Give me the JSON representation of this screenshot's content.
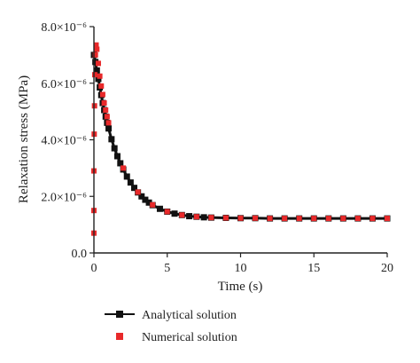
{
  "chart_data": {
    "type": "line",
    "xlabel": "Time (s)",
    "ylabel": "Relaxation stress (MPa)",
    "xlim": [
      0,
      20
    ],
    "ylim": [
      0,
      8e-06
    ],
    "x_ticks": [
      0,
      5,
      10,
      15,
      20
    ],
    "x_tick_labels": [
      "0",
      "5",
      "10",
      "15",
      "20"
    ],
    "y_ticks": [
      0,
      2e-06,
      4e-06,
      6e-06,
      8e-06
    ],
    "y_tick_labels": [
      "0.0",
      "2.0×10⁻⁶",
      "4.0×10⁻⁶",
      "6.0×10⁻⁶",
      "8.0×10⁻⁶"
    ],
    "grid": false,
    "legend_position": "bottom",
    "series": [
      {
        "name": "Analytical solution",
        "style": "line-square",
        "color": "#111111",
        "x": [
          0.0,
          0.1,
          0.2,
          0.3,
          0.4,
          0.5,
          0.6,
          0.7,
          0.8,
          0.9,
          1.0,
          1.2,
          1.4,
          1.6,
          1.8,
          2.0,
          2.25,
          2.5,
          2.75,
          3.0,
          3.25,
          3.5,
          3.75,
          4.0,
          4.5,
          5.0,
          5.5,
          6.0,
          6.5,
          7.0,
          7.5,
          8.0,
          9.0,
          10.0,
          11.0,
          12.0,
          13.0,
          14.0,
          15.0,
          16.0,
          17.0,
          18.0,
          19.0,
          20.0
        ],
        "y": [
          7e-06,
          6.75e-06,
          6.45e-06,
          6.15e-06,
          5.85e-06,
          5.58e-06,
          5.3e-06,
          5.05e-06,
          4.82e-06,
          4.6e-06,
          4.4e-06,
          4.02e-06,
          3.7e-06,
          3.42e-06,
          3.17e-06,
          2.95e-06,
          2.7e-06,
          2.49e-06,
          2.3e-06,
          2.14e-06,
          2e-06,
          1.88e-06,
          1.78e-06,
          1.69e-06,
          1.56e-06,
          1.46e-06,
          1.39e-06,
          1.34e-06,
          1.3e-06,
          1.28e-06,
          1.26e-06,
          1.25e-06,
          1.24e-06,
          1.23e-06,
          1.23e-06,
          1.22e-06,
          1.22e-06,
          1.22e-06,
          1.22e-06,
          1.22e-06,
          1.22e-06,
          1.22e-06,
          1.22e-06,
          1.22e-06
        ]
      },
      {
        "name": "Numerical solution",
        "style": "square",
        "color": "#e8292a",
        "x": [
          0.0,
          0.0,
          0.0,
          0.02,
          0.04,
          0.06,
          0.1,
          0.15,
          0.2,
          0.3,
          0.4,
          0.5,
          0.6,
          0.7,
          0.8,
          0.9,
          1.0,
          2.0,
          3.0,
          4.0,
          5.0,
          6.0,
          7.0,
          8.0,
          9.0,
          10.0,
          11.0,
          12.0,
          13.0,
          14.0,
          15.0,
          16.0,
          17.0,
          18.0,
          19.0,
          20.0
        ],
        "y": [
          7e-07,
          1.5e-06,
          2.9e-06,
          4.2e-06,
          5.2e-06,
          6.3e-06,
          7e-06,
          7.35e-06,
          7.2e-06,
          6.7e-06,
          6.25e-06,
          5.9e-06,
          5.6e-06,
          5.3e-06,
          5.05e-06,
          4.82e-06,
          4.6e-06,
          3e-06,
          2.15e-06,
          1.7e-06,
          1.46e-06,
          1.34e-06,
          1.28e-06,
          1.25e-06,
          1.24e-06,
          1.23e-06,
          1.23e-06,
          1.22e-06,
          1.22e-06,
          1.22e-06,
          1.22e-06,
          1.22e-06,
          1.22e-06,
          1.22e-06,
          1.22e-06,
          1.22e-06
        ]
      }
    ]
  }
}
